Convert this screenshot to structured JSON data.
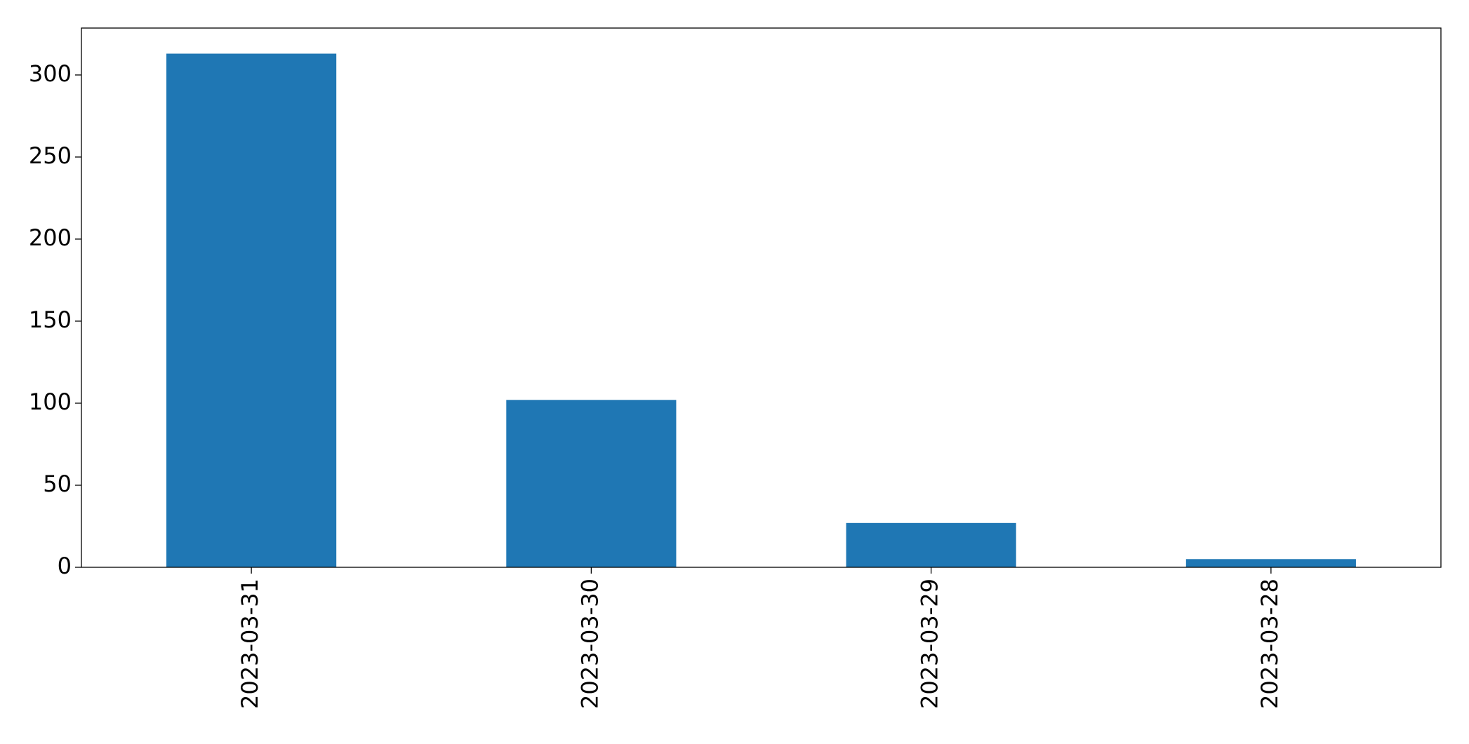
{
  "chart_data": {
    "type": "bar",
    "categories": [
      "2023-03-31",
      "2023-03-30",
      "2023-03-29",
      "2023-03-28"
    ],
    "values": [
      313,
      102,
      27,
      5
    ],
    "color": "#1f77b4",
    "ylim": [
      0,
      328.6
    ],
    "yticks": [
      0,
      50,
      100,
      150,
      200,
      250,
      300
    ],
    "grid": false
  }
}
